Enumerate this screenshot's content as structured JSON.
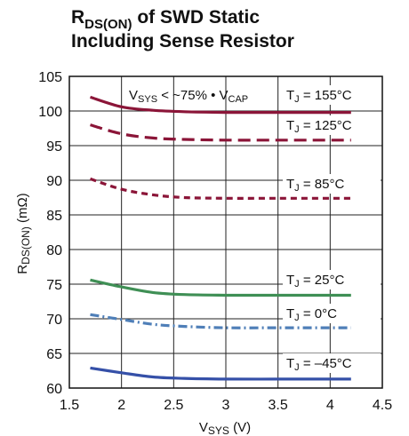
{
  "chart_data": {
    "type": "line",
    "title_main": "R",
    "title_sub": "DS(ON)",
    "title_rest": " of SWD Static",
    "title_line2": "Including Sense Resistor",
    "ylabel_main": "R",
    "ylabel_sub": "DS(ON)",
    "ylabel_rest": " (mΩ)",
    "xlabel_main": "V",
    "xlabel_sub": "SYS",
    "xlabel_rest": " (V)",
    "xlim": [
      1.5,
      4.5
    ],
    "ylim": [
      60,
      105
    ],
    "x_ticks": [
      1.5,
      2,
      2.5,
      3,
      3.5,
      4,
      4.5
    ],
    "x_tick_labels": [
      "1.5",
      "2",
      "2.5",
      "3",
      "3.5",
      "4",
      "4.5"
    ],
    "y_ticks": [
      60,
      65,
      70,
      75,
      80,
      85,
      90,
      95,
      100,
      105
    ],
    "y_tick_labels": [
      "60",
      "65",
      "70",
      "75",
      "80",
      "85",
      "90",
      "95",
      "100",
      "105"
    ],
    "grid": true,
    "annotation": {
      "v": "V",
      "v_sub": "SYS",
      "mid": " < ~75% • V",
      "cap_sub": "CAP"
    },
    "series": [
      {
        "label_main": "T",
        "label_sub": "J",
        "label_rest": " = 155°C",
        "color": "#8b1538",
        "dash": "solid",
        "x": [
          1.7,
          2.0,
          2.3,
          2.6,
          3.0,
          3.5,
          4.0,
          4.2
        ],
        "y": [
          102.0,
          100.6,
          100.1,
          99.9,
          99.8,
          99.8,
          99.8,
          99.8
        ]
      },
      {
        "label_main": "T",
        "label_sub": "J",
        "label_rest": " = 125°C",
        "color": "#8b1538",
        "dash": "long",
        "x": [
          1.7,
          2.0,
          2.3,
          2.6,
          3.0,
          3.5,
          4.0,
          4.2
        ],
        "y": [
          98.0,
          96.7,
          96.1,
          95.9,
          95.8,
          95.8,
          95.8,
          95.8
        ]
      },
      {
        "label_main": "T",
        "label_sub": "J",
        "label_rest": " = 85°C",
        "color": "#8b1538",
        "dash": "short",
        "x": [
          1.7,
          2.0,
          2.3,
          2.6,
          3.0,
          3.5,
          4.0,
          4.2
        ],
        "y": [
          90.2,
          88.7,
          87.9,
          87.5,
          87.4,
          87.4,
          87.4,
          87.4
        ]
      },
      {
        "label_main": "T",
        "label_sub": "J",
        "label_rest": " = 25°C",
        "color": "#3f8f55",
        "dash": "solid",
        "x": [
          1.7,
          2.0,
          2.3,
          2.6,
          3.0,
          3.5,
          4.0,
          4.2
        ],
        "y": [
          75.6,
          74.6,
          73.8,
          73.5,
          73.4,
          73.4,
          73.4,
          73.4
        ]
      },
      {
        "label_main": "T",
        "label_sub": "J",
        "label_rest": " = 0°C",
        "color": "#4f7fb8",
        "dash": "dashdot",
        "x": [
          1.7,
          2.0,
          2.3,
          2.6,
          3.0,
          3.5,
          4.0,
          4.2
        ],
        "y": [
          70.6,
          69.9,
          69.2,
          68.9,
          68.7,
          68.7,
          68.7,
          68.7
        ]
      },
      {
        "label_main": "T",
        "label_sub": "J",
        "label_rest": " = –45°C",
        "color": "#3550a8",
        "dash": "solid",
        "x": [
          1.7,
          2.0,
          2.3,
          2.6,
          3.0,
          3.5,
          4.0,
          4.2
        ],
        "y": [
          62.9,
          62.2,
          61.6,
          61.4,
          61.3,
          61.3,
          61.3,
          61.3
        ]
      }
    ]
  }
}
